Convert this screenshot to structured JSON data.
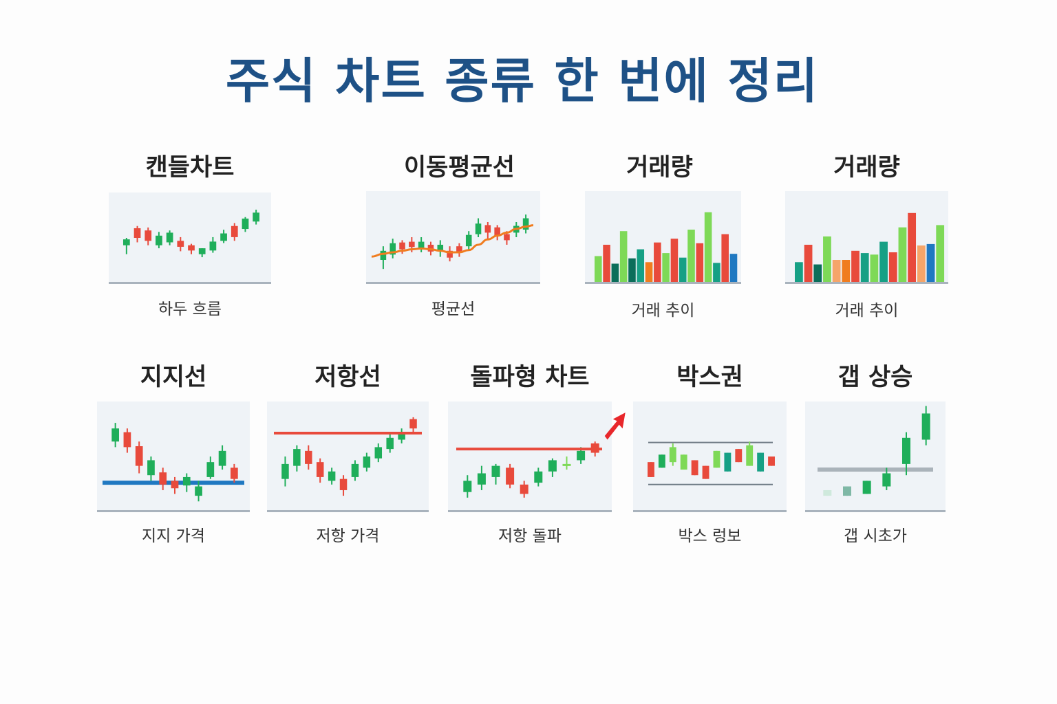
{
  "title": "주식 차트 종류 한 번에 정리",
  "colors": {
    "title": "#1e5186",
    "up": "#e84a3c",
    "down": "#1fae5a",
    "teal": "#16a085",
    "lightgreen": "#7ed957",
    "blue": "#1f78c1",
    "orange": "#f07c1f",
    "gray": "#a9b3bd"
  },
  "cards": [
    {
      "title": "캔들차트",
      "caption": "하두 흐름"
    },
    {
      "title": "이동평균선",
      "caption": "평균선"
    },
    {
      "title": "거래량",
      "caption": "거래 추이"
    },
    {
      "title": "거래량",
      "caption": "거래 추이"
    },
    {
      "title": "지지선",
      "caption": "지지 가격"
    },
    {
      "title": "저항선",
      "caption": "저항 가격"
    },
    {
      "title": "돌파형 차트",
      "caption": "저항 돌파"
    },
    {
      "title": "박스권",
      "caption": "박스 렁보"
    },
    {
      "title": "갭 상승",
      "caption": "갭 시초가"
    }
  ],
  "chart_data": [
    {
      "type": "candlestick",
      "ylim": [
        0,
        100
      ],
      "candles": [
        [
          40,
          48,
          50,
          28,
          "g"
        ],
        [
          63,
          50,
          66,
          44,
          "r"
        ],
        [
          60,
          46,
          64,
          40,
          "r"
        ],
        [
          53,
          40,
          58,
          36,
          "g"
        ],
        [
          57,
          44,
          60,
          40,
          "g"
        ],
        [
          46,
          38,
          51,
          32,
          "r"
        ],
        [
          33,
          40,
          42,
          28,
          "r"
        ],
        [
          28,
          36,
          36,
          24,
          "g"
        ],
        [
          45,
          33,
          51,
          30,
          "g"
        ],
        [
          56,
          46,
          61,
          43,
          "g"
        ],
        [
          66,
          51,
          70,
          46,
          "r"
        ],
        [
          76,
          62,
          78,
          58,
          "g"
        ],
        [
          84,
          72,
          88,
          68,
          "g"
        ]
      ]
    },
    {
      "type": "candlestick_ma",
      "ylim": [
        0,
        100
      ],
      "candles": [
        [
          20,
          32,
          38,
          8,
          "g"
        ],
        [
          27,
          42,
          48,
          22,
          "g"
        ],
        [
          43,
          34,
          46,
          28,
          "r"
        ],
        [
          37,
          44,
          50,
          30,
          "r"
        ],
        [
          36,
          44,
          50,
          30,
          "g"
        ],
        [
          31,
          40,
          44,
          26,
          "r"
        ],
        [
          32,
          40,
          46,
          24,
          "g"
        ],
        [
          23,
          32,
          38,
          18,
          "r"
        ],
        [
          31,
          38,
          42,
          24,
          "r"
        ],
        [
          53,
          38,
          58,
          34,
          "g"
        ],
        [
          68,
          54,
          75,
          50,
          "g"
        ],
        [
          66,
          56,
          70,
          48,
          "r"
        ],
        [
          63,
          52,
          66,
          46,
          "r"
        ],
        [
          54,
          46,
          58,
          40,
          "r"
        ],
        [
          65,
          56,
          70,
          50,
          "g"
        ],
        [
          75,
          60,
          80,
          55,
          "g"
        ]
      ],
      "ma": [
        28,
        30,
        32,
        34,
        35,
        34,
        32,
        30,
        30,
        33,
        40,
        47,
        52,
        56,
        61,
        64
      ]
    },
    {
      "type": "bar",
      "ylim": [
        0,
        100
      ],
      "values": [
        [
          25,
          "lightgreen"
        ],
        [
          40,
          "up"
        ],
        [
          15,
          "dkteal"
        ],
        [
          58,
          "lightgreen"
        ],
        [
          22,
          "dkteal"
        ],
        [
          34,
          "teal"
        ],
        [
          17,
          "orange"
        ],
        [
          43,
          "up"
        ],
        [
          29,
          "lightgreen"
        ],
        [
          48,
          "up"
        ],
        [
          23,
          "teal"
        ],
        [
          60,
          "lightgreen"
        ],
        [
          42,
          "up"
        ],
        [
          83,
          "lightgreen"
        ],
        [
          16,
          "teal"
        ],
        [
          54,
          "up"
        ],
        [
          28,
          "blue"
        ]
      ]
    },
    {
      "type": "bar",
      "ylim": [
        0,
        100
      ],
      "values": [
        [
          17,
          "teal"
        ],
        [
          40,
          "up"
        ],
        [
          14,
          "dkteal"
        ],
        [
          51,
          "lightgreen"
        ],
        [
          20,
          "peach"
        ],
        [
          20,
          "orange"
        ],
        [
          32,
          "up"
        ],
        [
          29,
          "teal"
        ],
        [
          27,
          "lightgreen"
        ],
        [
          44,
          "teal"
        ],
        [
          30,
          "up"
        ],
        [
          63,
          "lightgreen"
        ],
        [
          82,
          "up"
        ],
        [
          39,
          "peach"
        ],
        [
          41,
          "blue"
        ],
        [
          66,
          "lightgreen"
        ]
      ]
    },
    {
      "type": "candlestick_support",
      "ylim": [
        0,
        100
      ],
      "support": 22,
      "candles": [
        [
          80,
          66,
          86,
          60,
          "g"
        ],
        [
          76,
          60,
          80,
          54,
          "r"
        ],
        [
          61,
          40,
          66,
          32,
          "r"
        ],
        [
          46,
          30,
          50,
          24,
          "g"
        ],
        [
          33,
          20,
          38,
          14,
          "r"
        ],
        [
          24,
          16,
          28,
          10,
          "r"
        ],
        [
          19,
          28,
          32,
          12,
          "g"
        ],
        [
          18,
          8,
          24,
          2,
          "g"
        ],
        [
          28,
          44,
          50,
          26,
          "g"
        ],
        [
          56,
          40,
          62,
          36,
          "g"
        ],
        [
          38,
          26,
          42,
          22,
          "r"
        ]
      ]
    },
    {
      "type": "candlestick_resistance",
      "ylim": [
        0,
        100
      ],
      "resistance": 75,
      "candles": [
        [
          26,
          42,
          50,
          18,
          "g"
        ],
        [
          40,
          58,
          62,
          34,
          "g"
        ],
        [
          56,
          42,
          62,
          36,
          "r"
        ],
        [
          44,
          28,
          48,
          22,
          "r"
        ],
        [
          34,
          24,
          38,
          20,
          "g"
        ],
        [
          26,
          14,
          30,
          8,
          "r"
        ],
        [
          28,
          42,
          46,
          24,
          "g"
        ],
        [
          38,
          50,
          54,
          34,
          "g"
        ],
        [
          48,
          60,
          64,
          44,
          "g"
        ],
        [
          58,
          70,
          74,
          54,
          "g"
        ],
        [
          68,
          76,
          80,
          64,
          "g"
        ],
        [
          80,
          90,
          92,
          76,
          "r"
        ]
      ]
    },
    {
      "type": "candlestick_breakout",
      "ylim": [
        0,
        100
      ],
      "resistance": 58,
      "candles": [
        [
          12,
          24,
          30,
          6,
          "g"
        ],
        [
          20,
          32,
          40,
          14,
          "g"
        ],
        [
          28,
          40,
          42,
          20,
          "g"
        ],
        [
          38,
          20,
          42,
          16,
          "r"
        ],
        [
          20,
          10,
          24,
          6,
          "r"
        ],
        [
          22,
          34,
          38,
          18,
          "g"
        ],
        [
          34,
          46,
          48,
          28,
          "g"
        ],
        [
          42,
          40,
          50,
          36,
          "lg"
        ],
        [
          46,
          56,
          60,
          42,
          "g"
        ],
        [
          54,
          64,
          66,
          50,
          "r"
        ]
      ],
      "arrow": true
    },
    {
      "type": "box",
      "ylim": [
        0,
        100
      ],
      "upper": 65,
      "lower": 20,
      "candles": [
        [
          44,
          28,
          44,
          28,
          "r"
        ],
        [
          38,
          52,
          52,
          38,
          "g"
        ],
        [
          44,
          60,
          64,
          40,
          "lg"
        ],
        [
          52,
          36,
          52,
          36,
          "lg"
        ],
        [
          46,
          30,
          46,
          30,
          "r"
        ],
        [
          40,
          26,
          40,
          26,
          "r"
        ],
        [
          38,
          56,
          56,
          38,
          "lg"
        ],
        [
          54,
          34,
          54,
          34,
          "teal"
        ],
        [
          44,
          58,
          58,
          44,
          "r"
        ],
        [
          62,
          40,
          66,
          40,
          "lg"
        ],
        [
          54,
          34,
          54,
          34,
          "teal"
        ],
        [
          50,
          40,
          50,
          40,
          "r"
        ]
      ]
    },
    {
      "type": "gap_up",
      "ylim": [
        0,
        100
      ],
      "level": 36,
      "candles": [
        [
          8,
          14,
          14,
          8,
          "palegreen"
        ],
        [
          8,
          18,
          18,
          8,
          "mid"
        ],
        [
          10,
          24,
          24,
          10,
          "g"
        ],
        [
          18,
          32,
          38,
          14,
          "g"
        ],
        [
          42,
          70,
          76,
          30,
          "g"
        ],
        [
          68,
          96,
          104,
          62,
          "g"
        ]
      ]
    }
  ]
}
